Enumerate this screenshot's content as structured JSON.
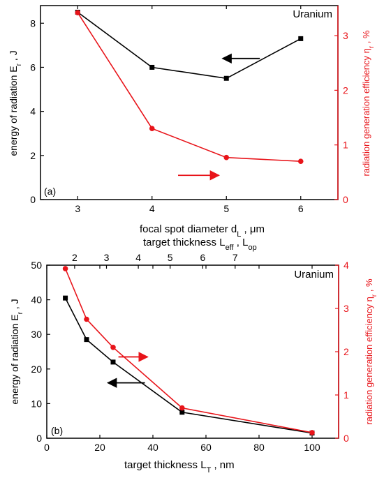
{
  "colors": {
    "primary": "#000000",
    "secondary": "#e8141a"
  },
  "chart_data": [
    {
      "type": "line",
      "panel_label": "(a)",
      "annotation": "Uranium",
      "xlabel": "focal spot diameter d_L , μm",
      "ylabel": "energy of radiation E_r , J",
      "y2label": "radiation generation efficiency η_r , %",
      "xlim": [
        2.5,
        6.5
      ],
      "ylim": [
        0,
        8.8
      ],
      "y2lim": [
        0,
        3.55
      ],
      "x_ticks": [
        3,
        4,
        5,
        6
      ],
      "y_ticks": [
        0,
        2,
        4,
        6,
        8
      ],
      "y2_ticks": [
        0,
        1,
        2,
        3
      ],
      "series": [
        {
          "axis": "left",
          "marker": "square",
          "color": "#000000",
          "x": [
            3,
            4,
            5,
            6
          ],
          "y": [
            8.5,
            6.0,
            5.5,
            7.3
          ]
        },
        {
          "axis": "right",
          "marker": "circle",
          "color": "#e8141a",
          "x": [
            3,
            4,
            5,
            6
          ],
          "y": [
            3.42,
            1.3,
            0.77,
            0.7
          ]
        }
      ],
      "arrows": [
        {
          "color": "#000000",
          "direction": "left",
          "from": [
            5.45,
            6.4
          ],
          "to": [
            4.95,
            6.4
          ]
        },
        {
          "color": "#e8141a",
          "direction": "right",
          "from": [
            4.35,
            1.1
          ],
          "to": [
            4.9,
            1.1
          ]
        }
      ]
    },
    {
      "type": "line",
      "panel_label": "(b)",
      "annotation": "Uranium",
      "xlabel": "target thickness L_T , nm",
      "x2label": "target thickness L_eff , L_op",
      "ylabel": "energy of radiation E_r , J",
      "y2label": "radiation generation efficiency η_r , %",
      "xlim": [
        0,
        110
      ],
      "ylim": [
        0,
        50
      ],
      "y2lim": [
        0,
        4
      ],
      "x_ticks": [
        0,
        20,
        40,
        60,
        80,
        100
      ],
      "y_ticks": [
        0,
        10,
        20,
        30,
        40,
        50
      ],
      "y2_ticks": [
        0,
        1,
        2,
        3,
        4
      ],
      "x2_ticks": [
        {
          "label": "2",
          "x": 10.5
        },
        {
          "label": "3",
          "x": 22.5
        },
        {
          "label": "4",
          "x": 34.5
        },
        {
          "label": "5",
          "x": 46.5
        },
        {
          "label": "6",
          "x": 58.8
        },
        {
          "label": "7",
          "x": 71
        }
      ],
      "series": [
        {
          "axis": "left",
          "marker": "square",
          "color": "#000000",
          "x": [
            7,
            15,
            25,
            51,
            100
          ],
          "y": [
            40.5,
            28.5,
            22,
            7.5,
            1.5
          ]
        },
        {
          "axis": "right",
          "marker": "circle",
          "color": "#e8141a",
          "x": [
            7,
            15,
            25,
            51,
            100
          ],
          "y": [
            3.92,
            2.75,
            2.1,
            0.7,
            0.13
          ]
        }
      ],
      "arrows": [
        {
          "color": "#000000",
          "direction": "left",
          "from": [
            37,
            16
          ],
          "to": [
            23,
            16
          ]
        },
        {
          "color": "#e8141a",
          "direction": "right",
          "from": [
            27,
            23.5
          ],
          "to": [
            38,
            23.5
          ]
        }
      ]
    }
  ]
}
